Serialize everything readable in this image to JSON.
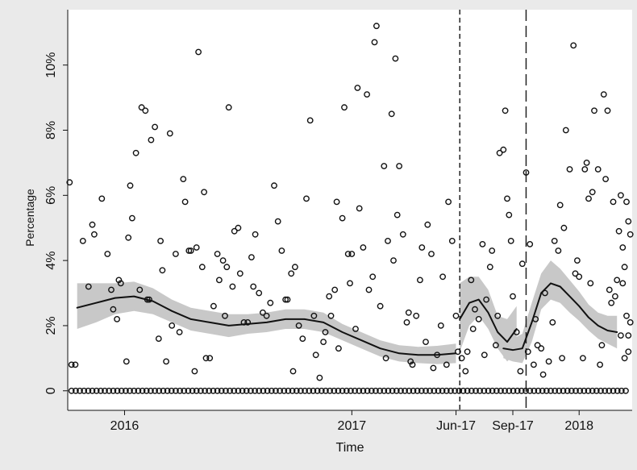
{
  "chart_data": {
    "type": "scatter",
    "title": "",
    "xlabel": "Time",
    "ylabel": "Percentage",
    "x_unit": "months since Jan 2016",
    "xlim": [
      -3.0,
      26.8
    ],
    "ylim": [
      -0.6,
      11.7
    ],
    "x_ticks": [
      {
        "x": 0,
        "label": "2016"
      },
      {
        "x": 12,
        "label": "2017"
      },
      {
        "x": 17.5,
        "label": "Jun-17"
      },
      {
        "x": 20.5,
        "label": "Sep-17"
      },
      {
        "x": 24,
        "label": "2018"
      }
    ],
    "y_ticks": [
      {
        "y": 0,
        "label": "0"
      },
      {
        "y": 2,
        "label": "2%"
      },
      {
        "y": 4,
        "label": "4%"
      },
      {
        "y": 6,
        "label": "6%"
      },
      {
        "y": 8,
        "label": "8%"
      },
      {
        "y": 10,
        "label": "10%"
      }
    ],
    "grid": false,
    "legend": "none",
    "vlines": [
      {
        "x": 17.7,
        "style": "short-dash"
      },
      {
        "x": 21.2,
        "style": "long-dash"
      }
    ],
    "colors": {
      "background": "#eaeaea",
      "plot_bg": "#ffffff",
      "band": "#c8c8c8",
      "line": "#111111",
      "marker": "#111111"
    },
    "fit_segments": [
      {
        "name": "fit-1",
        "x": [
          -2.5,
          -1.5,
          -0.5,
          0.5,
          1.5,
          2.5,
          3.5,
          4.5,
          5.5,
          6.5,
          7.5,
          8.5,
          9.5,
          10.5,
          11.5,
          12.5,
          13.5,
          14.5,
          15.5,
          16.5,
          17.5
        ],
        "y": [
          2.55,
          2.7,
          2.85,
          2.9,
          2.75,
          2.45,
          2.2,
          2.1,
          2.0,
          2.05,
          2.1,
          2.2,
          2.2,
          2.1,
          1.8,
          1.55,
          1.3,
          1.15,
          1.1,
          1.1,
          1.15
        ],
        "lo": [
          1.9,
          2.1,
          2.35,
          2.45,
          2.35,
          2.1,
          1.85,
          1.75,
          1.65,
          1.75,
          1.8,
          1.9,
          1.9,
          1.8,
          1.55,
          1.3,
          1.05,
          0.9,
          0.85,
          0.82,
          0.85
        ],
        "hi": [
          3.3,
          3.3,
          3.3,
          3.35,
          3.15,
          2.8,
          2.55,
          2.45,
          2.35,
          2.35,
          2.4,
          2.5,
          2.5,
          2.4,
          2.05,
          1.8,
          1.55,
          1.4,
          1.35,
          1.38,
          1.45
        ]
      },
      {
        "name": "fit-2",
        "x": [
          17.7,
          18.2,
          18.7,
          19.2,
          19.7,
          20.2,
          20.7
        ],
        "y": [
          2.2,
          2.7,
          2.8,
          2.4,
          1.8,
          1.5,
          1.9
        ],
        "lo": [
          1.2,
          2.0,
          2.3,
          1.9,
          1.3,
          0.9,
          1.2
        ],
        "hi": [
          3.3,
          3.5,
          3.5,
          3.1,
          2.3,
          2.2,
          2.6
        ]
      },
      {
        "name": "fit-3",
        "x": [
          20.0,
          20.5,
          21.0,
          21.5,
          22.0,
          22.5,
          23.0,
          23.5,
          24.0,
          24.5,
          25.0,
          25.5,
          26.0
        ],
        "y": [
          1.3,
          1.25,
          1.3,
          2.1,
          3.0,
          3.3,
          3.2,
          2.9,
          2.6,
          2.25,
          2.0,
          1.85,
          1.8
        ],
        "lo": [
          1.0,
          0.9,
          0.85,
          1.5,
          2.5,
          2.8,
          2.7,
          2.4,
          2.15,
          1.85,
          1.6,
          1.45,
          1.3
        ],
        "hi": [
          1.7,
          1.6,
          1.75,
          2.7,
          3.6,
          4.0,
          3.75,
          3.4,
          3.05,
          2.65,
          2.4,
          2.3,
          2.3
        ]
      }
    ],
    "points_nonzero": [
      [
        -2.9,
        6.4
      ],
      [
        -2.8,
        0.8
      ],
      [
        -2.6,
        0.8
      ],
      [
        -2.2,
        4.6
      ],
      [
        -1.9,
        3.2
      ],
      [
        -1.7,
        5.1
      ],
      [
        -1.6,
        4.8
      ],
      [
        -1.2,
        5.9
      ],
      [
        -0.9,
        4.2
      ],
      [
        -0.7,
        3.1
      ],
      [
        -0.6,
        2.5
      ],
      [
        -0.4,
        2.2
      ],
      [
        -0.3,
        3.4
      ],
      [
        -0.2,
        3.3
      ],
      [
        0.1,
        0.9
      ],
      [
        0.2,
        4.7
      ],
      [
        0.3,
        6.3
      ],
      [
        0.4,
        5.3
      ],
      [
        0.6,
        7.3
      ],
      [
        0.8,
        3.1
      ],
      [
        0.9,
        8.7
      ],
      [
        1.1,
        8.6
      ],
      [
        1.2,
        2.8
      ],
      [
        1.3,
        2.8
      ],
      [
        1.4,
        7.7
      ],
      [
        1.6,
        8.1
      ],
      [
        1.8,
        1.6
      ],
      [
        1.9,
        4.6
      ],
      [
        2.0,
        3.7
      ],
      [
        2.2,
        0.9
      ],
      [
        2.4,
        7.9
      ],
      [
        2.5,
        2.0
      ],
      [
        2.7,
        4.2
      ],
      [
        2.9,
        1.8
      ],
      [
        3.1,
        6.5
      ],
      [
        3.2,
        5.8
      ],
      [
        3.4,
        4.3
      ],
      [
        3.5,
        4.3
      ],
      [
        3.7,
        0.6
      ],
      [
        3.8,
        4.4
      ],
      [
        3.9,
        10.4
      ],
      [
        4.1,
        3.8
      ],
      [
        4.2,
        6.1
      ],
      [
        4.3,
        1.0
      ],
      [
        4.5,
        1.0
      ],
      [
        4.7,
        2.6
      ],
      [
        4.9,
        4.2
      ],
      [
        5.0,
        3.4
      ],
      [
        5.2,
        4.0
      ],
      [
        5.3,
        2.3
      ],
      [
        5.4,
        3.8
      ],
      [
        5.5,
        8.7
      ],
      [
        5.7,
        3.2
      ],
      [
        5.8,
        4.9
      ],
      [
        6.0,
        5.0
      ],
      [
        6.1,
        3.6
      ],
      [
        6.3,
        2.1
      ],
      [
        6.5,
        2.1
      ],
      [
        6.7,
        4.1
      ],
      [
        6.8,
        3.2
      ],
      [
        6.9,
        4.8
      ],
      [
        7.1,
        3.0
      ],
      [
        7.3,
        2.4
      ],
      [
        7.5,
        2.3
      ],
      [
        7.7,
        2.7
      ],
      [
        7.9,
        6.3
      ],
      [
        8.1,
        5.2
      ],
      [
        8.3,
        4.3
      ],
      [
        8.5,
        2.8
      ],
      [
        8.6,
        2.8
      ],
      [
        8.8,
        3.6
      ],
      [
        8.9,
        0.6
      ],
      [
        9.0,
        3.8
      ],
      [
        9.2,
        2.0
      ],
      [
        9.4,
        1.6
      ],
      [
        9.6,
        5.9
      ],
      [
        9.8,
        8.3
      ],
      [
        10.0,
        2.3
      ],
      [
        10.1,
        1.1
      ],
      [
        10.3,
        0.4
      ],
      [
        10.5,
        1.5
      ],
      [
        10.6,
        1.8
      ],
      [
        10.8,
        2.9
      ],
      [
        10.9,
        2.3
      ],
      [
        11.1,
        3.1
      ],
      [
        11.2,
        5.8
      ],
      [
        11.3,
        1.3
      ],
      [
        11.5,
        5.3
      ],
      [
        11.6,
        8.7
      ],
      [
        11.8,
        4.2
      ],
      [
        11.9,
        3.3
      ],
      [
        12.0,
        4.2
      ],
      [
        12.2,
        1.9
      ],
      [
        12.3,
        9.3
      ],
      [
        12.4,
        5.6
      ],
      [
        12.6,
        4.4
      ],
      [
        12.8,
        9.1
      ],
      [
        12.9,
        3.1
      ],
      [
        13.1,
        3.5
      ],
      [
        13.2,
        10.7
      ],
      [
        13.3,
        11.2
      ],
      [
        13.5,
        2.6
      ],
      [
        13.7,
        6.9
      ],
      [
        13.8,
        1.0
      ],
      [
        13.9,
        4.6
      ],
      [
        14.1,
        8.5
      ],
      [
        14.2,
        4.0
      ],
      [
        14.3,
        10.2
      ],
      [
        14.4,
        5.4
      ],
      [
        14.5,
        6.9
      ],
      [
        14.7,
        4.8
      ],
      [
        14.9,
        2.1
      ],
      [
        15.0,
        2.4
      ],
      [
        15.1,
        0.9
      ],
      [
        15.2,
        0.8
      ],
      [
        15.4,
        2.3
      ],
      [
        15.6,
        3.4
      ],
      [
        15.7,
        4.4
      ],
      [
        15.9,
        1.5
      ],
      [
        16.0,
        5.1
      ],
      [
        16.2,
        4.2
      ],
      [
        16.3,
        0.7
      ],
      [
        16.5,
        1.1
      ],
      [
        16.7,
        2.0
      ],
      [
        16.8,
        3.5
      ],
      [
        17.0,
        0.8
      ],
      [
        17.1,
        5.8
      ],
      [
        17.3,
        4.6
      ],
      [
        17.5,
        2.3
      ],
      [
        17.6,
        1.2
      ],
      [
        17.8,
        1.0
      ],
      [
        18.0,
        0.6
      ],
      [
        18.1,
        1.2
      ],
      [
        18.3,
        3.4
      ],
      [
        18.4,
        1.9
      ],
      [
        18.5,
        2.5
      ],
      [
        18.7,
        2.2
      ],
      [
        18.9,
        4.5
      ],
      [
        19.0,
        1.1
      ],
      [
        19.1,
        2.8
      ],
      [
        19.3,
        3.8
      ],
      [
        19.4,
        4.3
      ],
      [
        19.6,
        1.4
      ],
      [
        19.7,
        2.3
      ],
      [
        19.8,
        7.3
      ],
      [
        20.0,
        7.4
      ],
      [
        20.1,
        8.6
      ],
      [
        20.2,
        5.9
      ],
      [
        20.3,
        5.4
      ],
      [
        20.4,
        4.6
      ],
      [
        20.5,
        2.9
      ],
      [
        20.7,
        1.8
      ],
      [
        20.9,
        0.6
      ],
      [
        21.0,
        3.9
      ],
      [
        21.2,
        6.7
      ],
      [
        21.3,
        1.2
      ],
      [
        21.4,
        4.5
      ],
      [
        21.6,
        0.8
      ],
      [
        21.7,
        2.2
      ],
      [
        21.8,
        1.4
      ],
      [
        22.0,
        1.3
      ],
      [
        22.1,
        0.5
      ],
      [
        22.2,
        3.0
      ],
      [
        22.4,
        0.9
      ],
      [
        22.6,
        2.1
      ],
      [
        22.7,
        4.6
      ],
      [
        22.9,
        4.3
      ],
      [
        23.0,
        5.7
      ],
      [
        23.1,
        1.0
      ],
      [
        23.2,
        5.0
      ],
      [
        23.3,
        8.0
      ],
      [
        23.5,
        6.8
      ],
      [
        23.7,
        10.6
      ],
      [
        23.8,
        3.6
      ],
      [
        23.9,
        4.0
      ],
      [
        24.0,
        3.5
      ],
      [
        24.2,
        1.0
      ],
      [
        24.3,
        6.8
      ],
      [
        24.4,
        7.0
      ],
      [
        24.5,
        5.9
      ],
      [
        24.6,
        3.3
      ],
      [
        24.7,
        6.1
      ],
      [
        24.8,
        8.6
      ],
      [
        25.0,
        6.8
      ],
      [
        25.1,
        0.8
      ],
      [
        25.2,
        1.4
      ],
      [
        25.3,
        9.1
      ],
      [
        25.4,
        6.5
      ],
      [
        25.5,
        8.6
      ],
      [
        25.6,
        3.1
      ],
      [
        25.7,
        2.7
      ],
      [
        25.8,
        5.8
      ],
      [
        25.9,
        2.9
      ],
      [
        26.0,
        3.4
      ],
      [
        26.1,
        4.9
      ],
      [
        26.2,
        1.7
      ],
      [
        26.3,
        4.4
      ],
      [
        26.4,
        1.0
      ],
      [
        26.5,
        2.3
      ],
      [
        26.6,
        1.7
      ],
      [
        26.7,
        4.8
      ],
      [
        26.3,
        3.3
      ],
      [
        26.5,
        5.8
      ],
      [
        26.6,
        1.2
      ],
      [
        26.7,
        2.1
      ],
      [
        26.2,
        6.0
      ],
      [
        26.4,
        3.8
      ],
      [
        26.6,
        5.2
      ]
    ],
    "zeros_x_start": -2.8,
    "zeros_x_end": 26.6,
    "zeros_step": 0.22
  }
}
